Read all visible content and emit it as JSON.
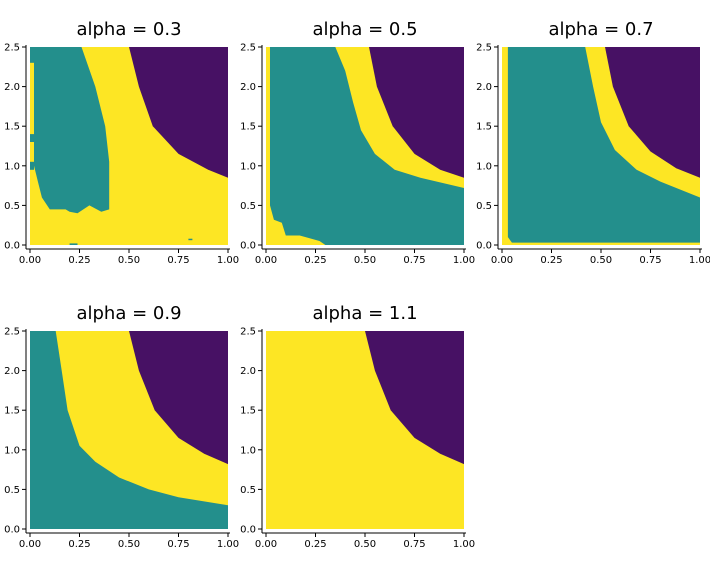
{
  "chart_data": {
    "type": "heatmap",
    "palette": {
      "purple": "#471164",
      "teal": "#238f8c",
      "yellow": "#fde624"
    },
    "panels": [
      {
        "title": "alpha = 0.3",
        "xlim": [
          0,
          1
        ],
        "ylim": [
          0,
          2.5
        ],
        "xticks": [
          "0.00",
          "0.25",
          "0.50",
          "0.75",
          "1.00"
        ],
        "yticks": [
          "0.0",
          "0.5",
          "1.0",
          "1.5",
          "2.0",
          "2.5"
        ],
        "regions": [
          {
            "color": "purple",
            "points": [
              [
                0.5,
                2.5
              ],
              [
                1.0,
                2.5
              ],
              [
                1.0,
                0.85
              ],
              [
                0.9,
                0.95
              ],
              [
                0.75,
                1.15
              ],
              [
                0.62,
                1.5
              ],
              [
                0.55,
                2.0
              ],
              [
                0.5,
                2.5
              ]
            ]
          },
          {
            "color": "teal",
            "points": [
              [
                0.02,
                2.5
              ],
              [
                0.26,
                2.5
              ],
              [
                0.33,
                2.0
              ],
              [
                0.38,
                1.5
              ],
              [
                0.4,
                1.05
              ],
              [
                0.4,
                0.45
              ],
              [
                0.36,
                0.42
              ],
              [
                0.3,
                0.5
              ],
              [
                0.24,
                0.4
              ],
              [
                0.2,
                0.42
              ],
              [
                0.18,
                0.45
              ],
              [
                0.1,
                0.45
              ],
              [
                0.06,
                0.6
              ],
              [
                0.04,
                0.8
              ],
              [
                0.02,
                1.0
              ]
            ]
          },
          {
            "color": "teal",
            "points": [
              [
                0.0,
                2.5
              ],
              [
                0.02,
                2.5
              ],
              [
                0.02,
                2.3
              ],
              [
                0.0,
                2.3
              ]
            ]
          },
          {
            "color": "teal",
            "points": [
              [
                0.0,
                1.4
              ],
              [
                0.02,
                1.4
              ],
              [
                0.02,
                1.3
              ],
              [
                0.0,
                1.3
              ]
            ]
          },
          {
            "color": "teal",
            "points": [
              [
                0.0,
                1.05
              ],
              [
                0.02,
                1.05
              ],
              [
                0.02,
                0.95
              ],
              [
                0.0,
                0.95
              ]
            ]
          },
          {
            "color": "teal",
            "points": [
              [
                0.2,
                0.02
              ],
              [
                0.24,
                0.02
              ],
              [
                0.24,
                0.0
              ],
              [
                0.2,
                0.0
              ]
            ]
          },
          {
            "color": "teal",
            "points": [
              [
                0.8,
                0.08
              ],
              [
                0.82,
                0.08
              ],
              [
                0.82,
                0.06
              ],
              [
                0.8,
                0.06
              ]
            ]
          }
        ]
      },
      {
        "title": "alpha = 0.5",
        "xlim": [
          0,
          1
        ],
        "ylim": [
          0,
          2.5
        ],
        "xticks": [
          "0.00",
          "0.25",
          "0.50",
          "0.75",
          "1.00"
        ],
        "yticks": [
          "0.0",
          "0.5",
          "1.0",
          "1.5",
          "2.0",
          "2.5"
        ],
        "regions": [
          {
            "color": "teal",
            "points": [
              [
                0.02,
                2.5
              ],
              [
                0.35,
                2.5
              ],
              [
                0.4,
                2.2
              ],
              [
                0.44,
                1.8
              ],
              [
                0.48,
                1.45
              ],
              [
                0.55,
                1.15
              ],
              [
                0.65,
                0.95
              ],
              [
                0.78,
                0.85
              ],
              [
                1.0,
                0.72
              ],
              [
                1.0,
                0.0
              ],
              [
                0.3,
                0.0
              ],
              [
                0.27,
                0.05
              ],
              [
                0.2,
                0.1
              ],
              [
                0.17,
                0.12
              ],
              [
                0.1,
                0.12
              ],
              [
                0.08,
                0.28
              ],
              [
                0.04,
                0.32
              ],
              [
                0.02,
                0.5
              ]
            ]
          },
          {
            "color": "purple",
            "points": [
              [
                0.52,
                2.5
              ],
              [
                1.0,
                2.5
              ],
              [
                1.0,
                0.85
              ],
              [
                0.88,
                0.95
              ],
              [
                0.75,
                1.15
              ],
              [
                0.64,
                1.5
              ],
              [
                0.56,
                2.0
              ],
              [
                0.52,
                2.5
              ]
            ]
          }
        ]
      },
      {
        "title": "alpha = 0.7",
        "xlim": [
          0,
          1
        ],
        "ylim": [
          0,
          2.5
        ],
        "xticks": [
          "0.00",
          "0.25",
          "0.50",
          "0.75",
          "1.00"
        ],
        "yticks": [
          "0.0",
          "0.5",
          "1.0",
          "1.5",
          "2.0",
          "2.5"
        ],
        "regions": [
          {
            "color": "teal",
            "points": [
              [
                0.03,
                2.5
              ],
              [
                0.42,
                2.5
              ],
              [
                0.46,
                2.0
              ],
              [
                0.5,
                1.55
              ],
              [
                0.57,
                1.2
              ],
              [
                0.68,
                0.95
              ],
              [
                0.8,
                0.8
              ],
              [
                1.0,
                0.6
              ],
              [
                1.0,
                0.03
              ],
              [
                0.05,
                0.03
              ],
              [
                0.03,
                0.1
              ]
            ]
          },
          {
            "color": "purple",
            "points": [
              [
                0.52,
                2.5
              ],
              [
                1.0,
                2.5
              ],
              [
                1.0,
                0.85
              ],
              [
                0.88,
                0.97
              ],
              [
                0.75,
                1.18
              ],
              [
                0.64,
                1.5
              ],
              [
                0.56,
                2.0
              ],
              [
                0.52,
                2.5
              ]
            ]
          }
        ]
      },
      {
        "title": "alpha = 0.9",
        "xlim": [
          0,
          1
        ],
        "ylim": [
          0,
          2.5
        ],
        "xticks": [
          "0.00",
          "0.25",
          "0.50",
          "0.75",
          "1.00"
        ],
        "yticks": [
          "0.0",
          "0.5",
          "1.0",
          "1.5",
          "2.0",
          "2.5"
        ],
        "regions": [
          {
            "color": "teal",
            "points": [
              [
                0.0,
                2.5
              ],
              [
                0.13,
                2.5
              ],
              [
                0.16,
                2.0
              ],
              [
                0.19,
                1.5
              ],
              [
                0.25,
                1.05
              ],
              [
                0.33,
                0.85
              ],
              [
                0.45,
                0.65
              ],
              [
                0.6,
                0.5
              ],
              [
                0.75,
                0.4
              ],
              [
                1.0,
                0.3
              ],
              [
                1.0,
                0.0
              ],
              [
                0.0,
                0.0
              ]
            ]
          },
          {
            "color": "purple",
            "points": [
              [
                0.5,
                2.5
              ],
              [
                1.0,
                2.5
              ],
              [
                1.0,
                0.82
              ],
              [
                0.88,
                0.95
              ],
              [
                0.75,
                1.15
              ],
              [
                0.63,
                1.5
              ],
              [
                0.55,
                2.0
              ],
              [
                0.5,
                2.5
              ]
            ]
          }
        ]
      },
      {
        "title": "alpha = 1.1",
        "xlim": [
          0,
          1
        ],
        "ylim": [
          0,
          2.5
        ],
        "xticks": [
          "0.00",
          "0.25",
          "0.50",
          "0.75",
          "1.00"
        ],
        "yticks": [
          "0.0",
          "0.5",
          "1.0",
          "1.5",
          "2.0",
          "2.5"
        ],
        "regions": [
          {
            "color": "purple",
            "points": [
              [
                0.5,
                2.5
              ],
              [
                1.0,
                2.5
              ],
              [
                1.0,
                0.82
              ],
              [
                0.88,
                0.95
              ],
              [
                0.75,
                1.15
              ],
              [
                0.63,
                1.5
              ],
              [
                0.55,
                2.0
              ],
              [
                0.5,
                2.5
              ]
            ]
          }
        ]
      }
    ]
  }
}
